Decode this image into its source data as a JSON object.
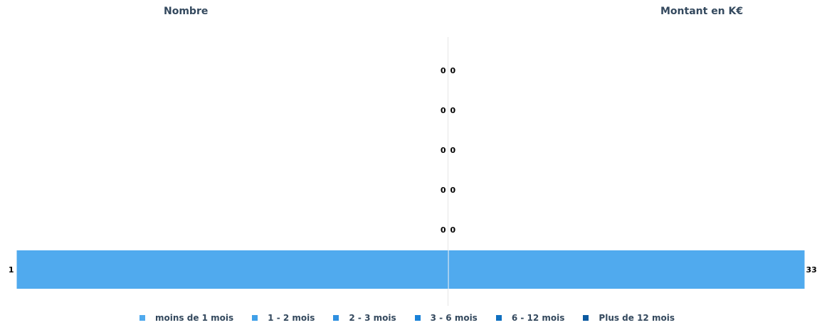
{
  "chart_data": {
    "type": "bar",
    "orientation": "horizontal-butterfly",
    "panels": [
      {
        "title": "Nombre",
        "side": "left"
      },
      {
        "title": "Montant en K€",
        "side": "right"
      }
    ],
    "categories": [
      "moins de 1 mois",
      "1 - 2 mois",
      "2 - 3 mois",
      "3 - 6 mois",
      "6 - 12 mois",
      "Plus de 12 mois"
    ],
    "series": [
      {
        "name": "Nombre",
        "values": [
          0,
          0,
          0,
          0,
          0,
          1
        ]
      },
      {
        "name": "Montant en K€",
        "values": [
          0,
          0,
          0,
          0,
          0,
          33
        ]
      }
    ],
    "left_max": 1,
    "right_max": 33,
    "legend_position": "bottom",
    "grid": false
  },
  "colors": {
    "bar": "#50aaee",
    "legend": [
      "#50aaee",
      "#40a0e8",
      "#3090e0",
      "#1a82d8",
      "#1070c0",
      "#0c5aa0"
    ],
    "title": "#34495e",
    "axis": "#e6e6e6"
  }
}
